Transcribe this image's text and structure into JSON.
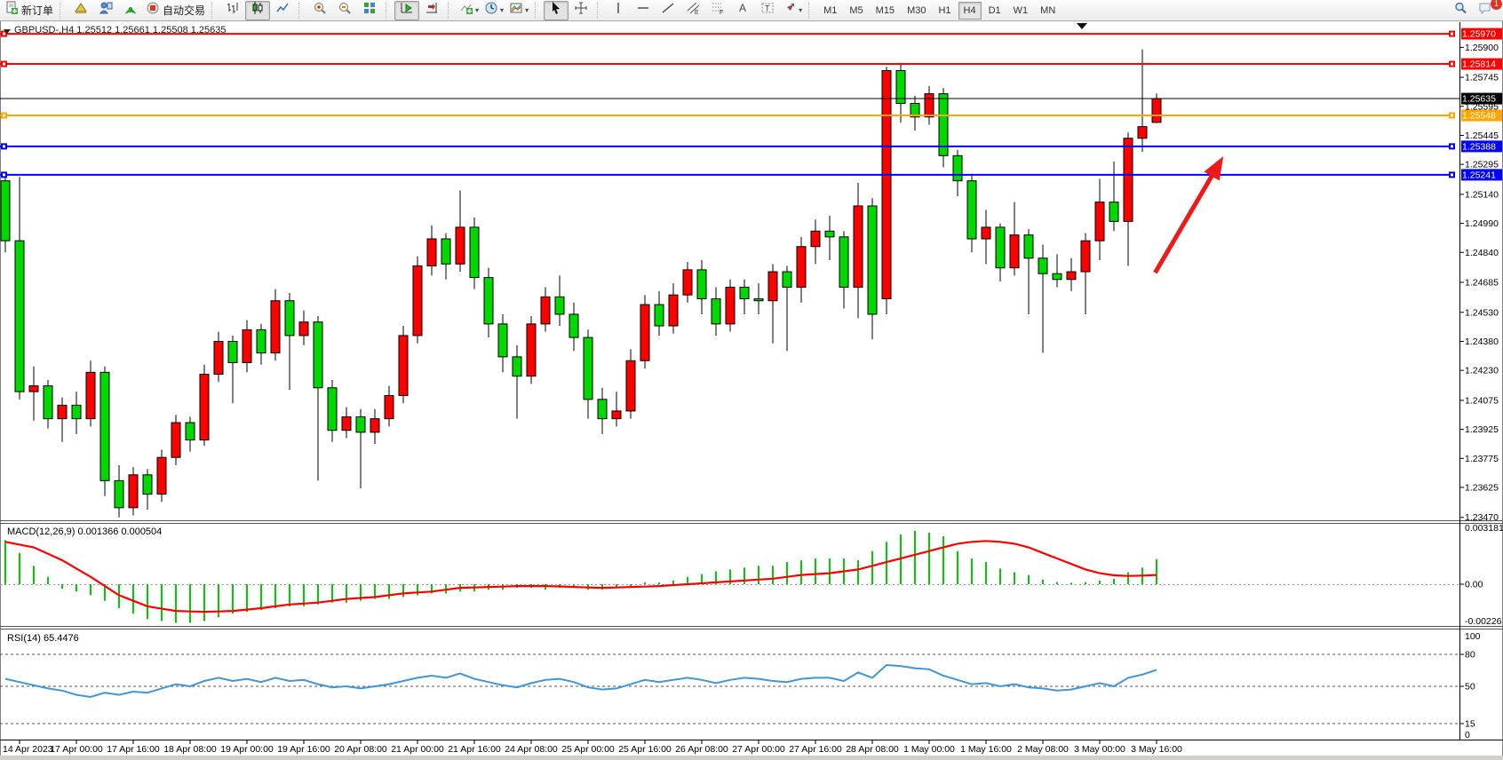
{
  "toolbar": {
    "groups": [
      {
        "items": [
          {
            "name": "new-order-button",
            "icon": "doc-plus",
            "label": "新订单"
          }
        ]
      },
      {
        "items": [
          {
            "name": "market-watch-button",
            "icon": "market-watch"
          },
          {
            "name": "navigator-button",
            "icon": "navigator"
          },
          {
            "name": "terminal-button",
            "icon": "terminal"
          },
          {
            "name": "auto-trading-button",
            "icon": "autotrade",
            "label": "自动交易"
          }
        ]
      },
      {
        "items": [
          {
            "name": "bar-chart-button",
            "icon": "bar-chart"
          },
          {
            "name": "candle-chart-button",
            "icon": "candle-chart",
            "active": true
          },
          {
            "name": "line-chart-button",
            "icon": "line-chart"
          }
        ]
      },
      {
        "items": [
          {
            "name": "zoom-in-button",
            "icon": "zoom-in"
          },
          {
            "name": "zoom-out-button",
            "icon": "zoom-out"
          },
          {
            "name": "tile-windows-button",
            "icon": "tile-windows"
          }
        ]
      },
      {
        "items": [
          {
            "name": "auto-scroll-button",
            "icon": "auto-scroll",
            "active": true
          },
          {
            "name": "chart-shift-button",
            "icon": "chart-shift"
          }
        ]
      },
      {
        "items": [
          {
            "name": "indicators-button",
            "icon": "indicators",
            "dropdown": true
          },
          {
            "name": "periods-button",
            "icon": "periods",
            "dropdown": true
          },
          {
            "name": "templates-button",
            "icon": "templates",
            "dropdown": true
          }
        ]
      },
      {
        "items": [
          {
            "name": "cursor-button",
            "icon": "cursor",
            "active": true
          },
          {
            "name": "crosshair-button",
            "icon": "crosshair"
          }
        ]
      },
      {
        "items": [
          {
            "name": "vline-button",
            "icon": "vline"
          },
          {
            "name": "hline-button",
            "icon": "hline"
          },
          {
            "name": "trendline-button",
            "icon": "trendline"
          },
          {
            "name": "channel-button",
            "icon": "channel"
          },
          {
            "name": "fibo-button",
            "icon": "fibo"
          },
          {
            "name": "text-button",
            "icon": "text"
          },
          {
            "name": "text-label-button",
            "icon": "text-label"
          },
          {
            "name": "arrows-button",
            "icon": "arrows",
            "dropdown": true
          }
        ]
      }
    ],
    "timeframes": [
      {
        "label": "M1"
      },
      {
        "label": "M5"
      },
      {
        "label": "M15"
      },
      {
        "label": "M30"
      },
      {
        "label": "H1"
      },
      {
        "label": "H4",
        "active": true
      },
      {
        "label": "D1"
      },
      {
        "label": "W1"
      },
      {
        "label": "MN"
      }
    ],
    "right_icons": [
      {
        "name": "search-button",
        "icon": "search"
      },
      {
        "name": "chat-button",
        "icon": "chat",
        "badge": "1"
      }
    ]
  },
  "chart_data": {
    "type": "candlestick",
    "symbol": "GBPUSD-",
    "timeframe": "H4",
    "title_text": "GBPUSD-,H4 1.25512 1.25661 1.25508 1.25635",
    "last_bar_ohlc": {
      "open": 1.25512,
      "high": 1.25661,
      "low": 1.25508,
      "close": 1.25635
    },
    "current_price": 1.25635,
    "color_scheme": {
      "up_body": "#ff0000",
      "down_body": "#00d800",
      "outline": "#000000",
      "note": "red = bullish, green = bearish (CN convention)"
    },
    "price_axis": {
      "visible_max": 1.2603,
      "visible_min": 1.23455,
      "ticks": [
        "1.25900",
        "1.25745",
        "1.25595",
        "1.25445",
        "1.25295",
        "1.25140",
        "1.24990",
        "1.24840",
        "1.24685",
        "1.24530",
        "1.24380",
        "1.24230",
        "1.24075",
        "1.23925",
        "1.23775",
        "1.23625",
        "1.23470"
      ]
    },
    "hlines": [
      {
        "price": 1.2597,
        "label": "1.25970",
        "color": "#ff0000"
      },
      {
        "price": 1.25814,
        "label": "1.25814",
        "color": "#ff0000"
      },
      {
        "price": 1.25548,
        "label": "1.25548",
        "color": "#ffa500"
      },
      {
        "price": 1.25388,
        "label": "1.25388",
        "color": "#0000ff"
      },
      {
        "price": 1.25241,
        "label": "1.25241",
        "color": "#0000ff"
      }
    ],
    "time_labels": {
      "bar_index": [
        1,
        5,
        9,
        13,
        17,
        21,
        25,
        29,
        33,
        37,
        41,
        45,
        49,
        53,
        57,
        61,
        65,
        69,
        73,
        77,
        81
      ],
      "text": [
        "14 Apr 2023",
        "17 Apr 00:00",
        "17 Apr 16:00",
        "18 Apr 08:00",
        "19 Apr 00:00",
        "19 Apr 16:00",
        "20 Apr 08:00",
        "21 Apr 00:00",
        "21 Apr 16:00",
        "24 Apr 08:00",
        "25 Apr 00:00",
        "25 Apr 16:00",
        "26 Apr 08:00",
        "27 Apr 00:00",
        "27 Apr 16:00",
        "28 Apr 08:00",
        "1 May 00:00",
        "1 May 16:00",
        "2 May 08:00",
        "3 May 00:00",
        "3 May 16:00"
      ]
    },
    "bars": [
      [
        1.2521,
        1.2524,
        1.2484,
        1.249
      ],
      [
        1.249,
        1.2523,
        1.2408,
        1.2412
      ],
      [
        1.2412,
        1.2425,
        1.2397,
        1.2415
      ],
      [
        1.2415,
        1.2418,
        1.2393,
        1.2398
      ],
      [
        1.2398,
        1.2409,
        1.2386,
        1.2405
      ],
      [
        1.2405,
        1.2412,
        1.239,
        1.2398
      ],
      [
        1.2398,
        1.2428,
        1.2394,
        1.2422
      ],
      [
        1.2422,
        1.2425,
        1.2358,
        1.2366
      ],
      [
        1.2366,
        1.2374,
        1.2347,
        1.2352
      ],
      [
        1.2352,
        1.2373,
        1.2348,
        1.2369
      ],
      [
        1.2369,
        1.2372,
        1.2351,
        1.2359
      ],
      [
        1.2359,
        1.2382,
        1.2355,
        1.2378
      ],
      [
        1.2378,
        1.24,
        1.2374,
        1.2396
      ],
      [
        1.2396,
        1.2399,
        1.2381,
        1.2387
      ],
      [
        1.2387,
        1.2426,
        1.2384,
        1.2421
      ],
      [
        1.2421,
        1.2443,
        1.2417,
        1.2438
      ],
      [
        1.2438,
        1.2441,
        1.2406,
        1.2427
      ],
      [
        1.2427,
        1.2449,
        1.2422,
        1.2444
      ],
      [
        1.2444,
        1.2447,
        1.2426,
        1.2432
      ],
      [
        1.2432,
        1.2465,
        1.2428,
        1.2459
      ],
      [
        1.2459,
        1.2463,
        1.2413,
        1.2441
      ],
      [
        1.2441,
        1.2454,
        1.2436,
        1.2448
      ],
      [
        1.2448,
        1.2451,
        1.2366,
        1.2414
      ],
      [
        1.2414,
        1.2418,
        1.2386,
        1.2392
      ],
      [
        1.2392,
        1.2404,
        1.2388,
        1.2399
      ],
      [
        1.2399,
        1.2403,
        1.2362,
        1.2391
      ],
      [
        1.2391,
        1.2403,
        1.2385,
        1.2398
      ],
      [
        1.2398,
        1.2415,
        1.2394,
        1.241
      ],
      [
        1.241,
        1.2446,
        1.2406,
        1.2441
      ],
      [
        1.2441,
        1.2482,
        1.2437,
        1.2477
      ],
      [
        1.2477,
        1.2498,
        1.2472,
        1.2491
      ],
      [
        1.2491,
        1.2494,
        1.247,
        1.2478
      ],
      [
        1.2478,
        1.2516,
        1.2474,
        1.2497
      ],
      [
        1.2497,
        1.2502,
        1.2465,
        1.2471
      ],
      [
        1.2471,
        1.2476,
        1.244,
        1.2447
      ],
      [
        1.2447,
        1.2452,
        1.2422,
        1.243
      ],
      [
        1.243,
        1.2436,
        1.2398,
        1.242
      ],
      [
        1.242,
        1.2451,
        1.2416,
        1.2447
      ],
      [
        1.2447,
        1.2466,
        1.2443,
        1.2461
      ],
      [
        1.2461,
        1.2472,
        1.2446,
        1.2452
      ],
      [
        1.2452,
        1.2458,
        1.2433,
        1.244
      ],
      [
        1.244,
        1.2444,
        1.2398,
        1.2408
      ],
      [
        1.2408,
        1.2414,
        1.239,
        1.2398
      ],
      [
        1.2398,
        1.2412,
        1.2394,
        1.2402
      ],
      [
        1.2402,
        1.2434,
        1.2398,
        1.2428
      ],
      [
        1.2428,
        1.2462,
        1.2424,
        1.2457
      ],
      [
        1.2457,
        1.2464,
        1.2441,
        1.2446
      ],
      [
        1.2446,
        1.2468,
        1.2442,
        1.2462
      ],
      [
        1.2462,
        1.2479,
        1.2458,
        1.2475
      ],
      [
        1.2475,
        1.248,
        1.2452,
        1.246
      ],
      [
        1.246,
        1.2466,
        1.2441,
        1.2447
      ],
      [
        1.2447,
        1.247,
        1.2443,
        1.2466
      ],
      [
        1.2466,
        1.247,
        1.2452,
        1.246
      ],
      [
        1.246,
        1.2468,
        1.2452,
        1.2459
      ],
      [
        1.2459,
        1.2478,
        1.2437,
        1.2474
      ],
      [
        1.2474,
        1.2477,
        1.2433,
        1.2466
      ],
      [
        1.2466,
        1.2492,
        1.2458,
        1.2487
      ],
      [
        1.2487,
        1.2501,
        1.2478,
        1.2495
      ],
      [
        1.2495,
        1.2503,
        1.248,
        1.2492
      ],
      [
        1.2492,
        1.2495,
        1.2455,
        1.2466
      ],
      [
        1.2466,
        1.252,
        1.245,
        1.2508
      ],
      [
        1.2508,
        1.2512,
        1.2439,
        1.2452
      ],
      [
        1.246,
        1.258,
        1.2452,
        1.2578
      ],
      [
        1.2578,
        1.2582,
        1.2551,
        1.2561
      ],
      [
        1.2561,
        1.2565,
        1.2547,
        1.2554
      ],
      [
        1.2554,
        1.257,
        1.255,
        1.2566
      ],
      [
        1.2566,
        1.2569,
        1.2528,
        1.2534
      ],
      [
        1.2534,
        1.2537,
        1.2513,
        1.2521
      ],
      [
        1.2521,
        1.2524,
        1.2484,
        1.2491
      ],
      [
        1.2491,
        1.2506,
        1.2478,
        1.2497
      ],
      [
        1.2497,
        1.2499,
        1.2469,
        1.2476
      ],
      [
        1.2476,
        1.251,
        1.2472,
        1.2493
      ],
      [
        1.2493,
        1.2496,
        1.2452,
        1.2481
      ],
      [
        1.2481,
        1.2488,
        1.2432,
        1.2473
      ],
      [
        1.2473,
        1.2483,
        1.2466,
        1.247
      ],
      [
        1.247,
        1.2481,
        1.2464,
        1.2474
      ],
      [
        1.2474,
        1.2494,
        1.2452,
        1.249
      ],
      [
        1.249,
        1.2522,
        1.248,
        1.251
      ],
      [
        1.251,
        1.2531,
        1.2495,
        1.25
      ],
      [
        1.25,
        1.2546,
        1.2477,
        1.2543
      ],
      [
        1.2543,
        1.2589,
        1.2536,
        1.2549
      ],
      [
        1.25512,
        1.25661,
        1.25508,
        1.25635
      ]
    ],
    "indicators": [
      {
        "name": "MACD",
        "label": "MACD(12,26,9) 0.001366 0.000504",
        "current_value": 0.001366,
        "current_signal": 0.000504,
        "axis_ticks": [
          "0.003181",
          "0.00",
          "-0.00226"
        ],
        "range_max": 0.00328,
        "range_min": -0.00227,
        "histogram_color": "#00cc00",
        "signal_color": "#ff0000",
        "histogram": [
          0.0024,
          0.0017,
          0.001,
          0.0004,
          -0.00025,
          -0.0004,
          -0.0006,
          -0.0009,
          -0.0013,
          -0.0016,
          -0.0019,
          -0.002,
          -0.0021,
          -0.0021,
          -0.002,
          -0.0018,
          -0.0016,
          -0.0015,
          -0.0014,
          -0.0013,
          -0.0012,
          -0.0012,
          -0.0011,
          -0.001,
          -0.001,
          -0.0009,
          -0.0008,
          -0.0008,
          -0.0007,
          -0.0006,
          -0.0005,
          -0.0005,
          -0.0004,
          -0.0004,
          -0.0003,
          -0.0003,
          -0.0002,
          -0.0002,
          -0.0003,
          -0.0002,
          -0.0002,
          -0.0003,
          -0.0003,
          -0.0002,
          -0.0001,
          0.0001,
          0.0001,
          0.0002,
          0.0004,
          0.00055,
          0.0007,
          0.0008,
          0.0009,
          0.001,
          0.001,
          0.0012,
          0.0013,
          0.0014,
          0.0014,
          0.0014,
          0.0013,
          0.0018,
          0.0023,
          0.0027,
          0.0029,
          0.0028,
          0.0026,
          0.0018,
          0.0014,
          0.0012,
          0.00085,
          0.00065,
          0.0005,
          0.00025,
          0.00012,
          8e-05,
          0.00012,
          0.0002,
          0.0003,
          0.00065,
          0.0009,
          0.001366
        ],
        "signal": [
          0.0023,
          0.00215,
          0.002,
          0.00165,
          0.0013,
          0.00085,
          0.0004,
          -0.0001,
          -0.0006,
          -0.0009,
          -0.0012,
          -0.00133,
          -0.00145,
          -0.00148,
          -0.0015,
          -0.00148,
          -0.00145,
          -0.00138,
          -0.0013,
          -0.0012,
          -0.0011,
          -0.00105,
          -0.001,
          -0.0009,
          -0.0008,
          -0.00075,
          -0.0007,
          -0.0006,
          -0.0005,
          -0.00045,
          -0.0004,
          -0.0003,
          -0.0002,
          -0.00018,
          -0.00015,
          -0.00013,
          -0.0001,
          -0.0001,
          -0.0001,
          -0.00012,
          -0.00015,
          -0.00018,
          -0.0002,
          -0.00018,
          -0.00015,
          -0.00013,
          -0.0001,
          -5e-05,
          0.0,
          5e-05,
          0.0001,
          0.00015,
          0.0002,
          0.00025,
          0.0003,
          0.0004,
          0.0005,
          0.00055,
          0.0006,
          0.0007,
          0.0008,
          0.001,
          0.0012,
          0.0014,
          0.0016,
          0.0018,
          0.002,
          0.0022,
          0.0023,
          0.00235,
          0.0023,
          0.0022,
          0.002,
          0.0017,
          0.0014,
          0.0011,
          0.0008,
          0.0006,
          0.00048,
          0.00045,
          0.00047,
          0.000504
        ]
      },
      {
        "name": "RSI",
        "label": "RSI(14) 65.4476",
        "current_value": 65.4476,
        "axis_ticks": [
          "100",
          "80",
          "50",
          "15",
          "0"
        ],
        "levels": [
          80,
          50,
          15
        ],
        "line_color": "#3e96dd",
        "series": [
          57,
          54,
          51,
          48,
          46,
          42,
          40,
          44,
          42,
          45,
          44,
          48,
          52,
          50,
          55,
          58,
          55,
          57,
          54,
          58,
          55,
          56,
          52,
          49,
          50,
          48,
          50,
          52,
          55,
          58,
          60,
          58,
          62,
          57,
          54,
          51,
          49,
          53,
          56,
          57,
          54,
          49,
          47,
          48,
          52,
          56,
          54,
          56,
          58,
          56,
          53,
          56,
          58,
          57,
          55,
          54,
          57,
          58,
          58,
          55,
          63,
          58,
          70,
          69,
          67,
          66,
          60,
          56,
          52,
          53,
          50,
          52,
          49,
          48,
          46,
          47,
          50,
          53,
          50,
          58,
          61,
          65.4
        ]
      }
    ],
    "annotations": [
      {
        "type": "arrow",
        "color": "#f01818",
        "from": {
          "bar": 80.9,
          "price": 1.24735
        },
        "to": {
          "bar": 85.7,
          "price": 1.25337
        }
      }
    ]
  }
}
